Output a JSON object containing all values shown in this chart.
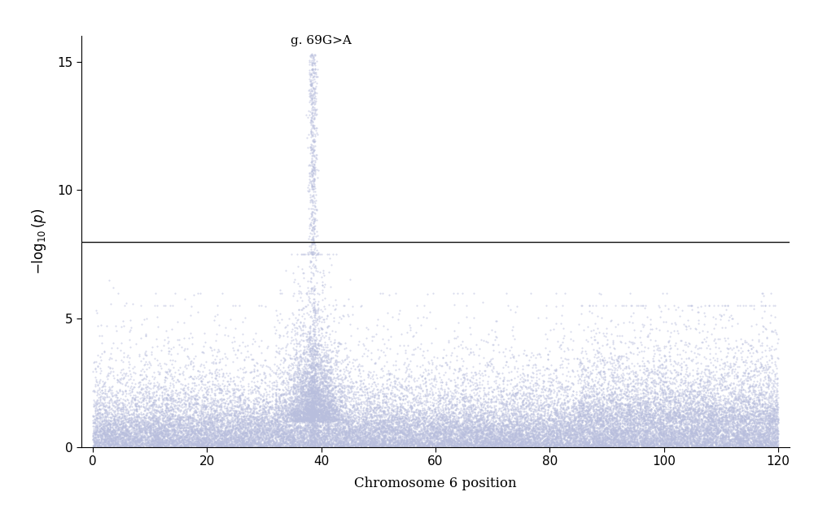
{
  "title": "g. 69G>A",
  "xlabel": "Chromosome 6 position",
  "ylabel": "-log$_{10}$(p)",
  "xlim": [
    -2,
    122
  ],
  "ylim": [
    0,
    16
  ],
  "xticks": [
    0,
    20,
    40,
    60,
    80,
    100,
    120
  ],
  "yticks": [
    0,
    5,
    10,
    15
  ],
  "threshold_y": 8.0,
  "threshold_color": "#111111",
  "dot_color": "#b8bedd",
  "dot_alpha": 0.55,
  "dot_size": 2.5,
  "peak_x": 38.5,
  "peak_y": 15.3,
  "n_base": 25000,
  "background_color": "#ffffff",
  "figsize": [
    10.0,
    6.31
  ],
  "dpi": 100
}
